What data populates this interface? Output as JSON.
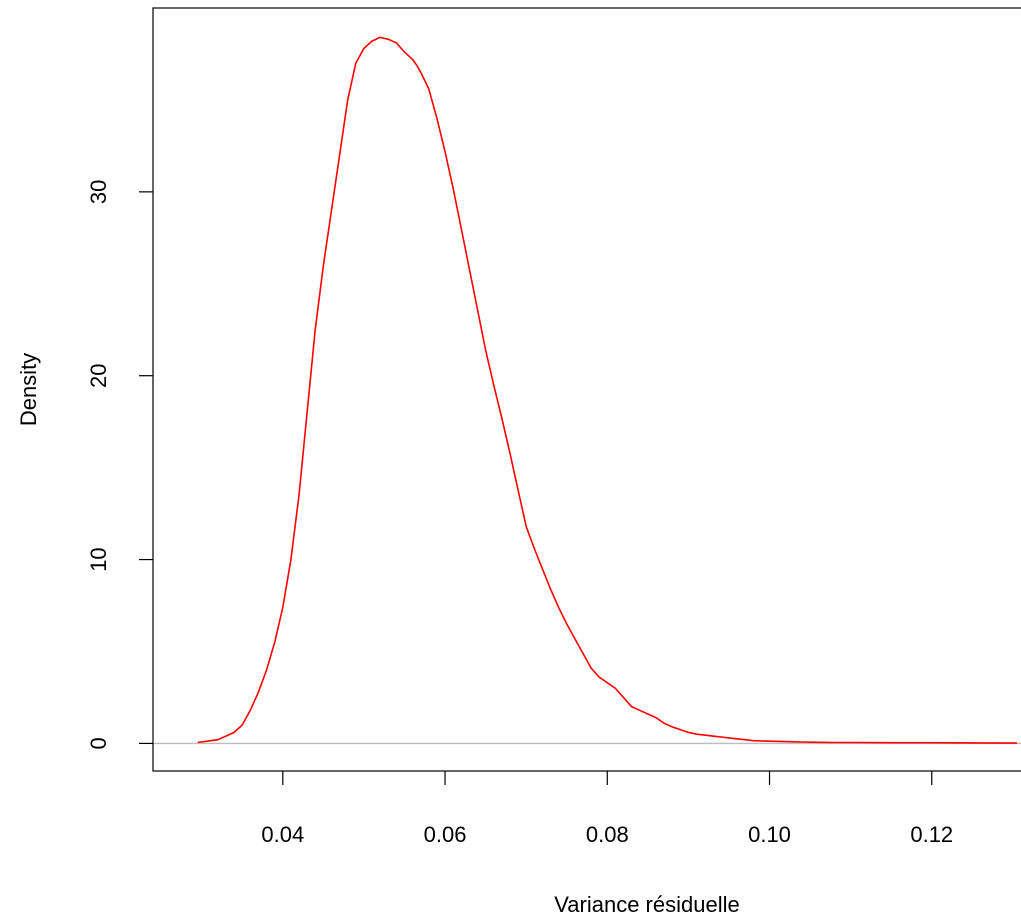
{
  "chart_data": {
    "type": "line",
    "title": "",
    "xlabel": "Variance résiduelle",
    "ylabel": "Density",
    "xlim": [
      0.024,
      0.131
    ],
    "ylim": [
      -1.5,
      40.0
    ],
    "x_ticks": [
      0.04,
      0.06,
      0.08,
      0.1,
      0.12
    ],
    "x_tick_labels": [
      "0.04",
      "0.06",
      "0.08",
      "0.10",
      "0.12"
    ],
    "y_ticks": [
      0,
      10,
      20,
      30
    ],
    "y_tick_labels": [
      "0",
      "10",
      "20",
      "30"
    ],
    "baseline": 0,
    "grid": false,
    "legend": "none",
    "colors": {
      "curve": "#ff0000",
      "baseline": "#bebebe",
      "axes": "#000000"
    },
    "series": [
      {
        "x": [
          0.0295,
          0.032,
          0.034,
          0.035,
          0.036,
          0.037,
          0.038,
          0.039,
          0.04,
          0.041,
          0.042,
          0.043,
          0.044,
          0.045,
          0.046,
          0.047,
          0.048,
          0.049,
          0.05,
          0.051,
          0.052,
          0.053,
          0.054,
          0.055,
          0.056,
          0.0565,
          0.057,
          0.058,
          0.059,
          0.06,
          0.061,
          0.062,
          0.063,
          0.064,
          0.065,
          0.066,
          0.067,
          0.068,
          0.069,
          0.07,
          0.071,
          0.072,
          0.073,
          0.074,
          0.075,
          0.076,
          0.077,
          0.078,
          0.079,
          0.08,
          0.081,
          0.082,
          0.083,
          0.084,
          0.085,
          0.086,
          0.087,
          0.088,
          0.089,
          0.09,
          0.091,
          0.092,
          0.093,
          0.094,
          0.095,
          0.096,
          0.097,
          0.098,
          0.1,
          0.102,
          0.104,
          0.106,
          0.108,
          0.11,
          0.115,
          0.12,
          0.125,
          0.1305
        ],
        "y": [
          0.05,
          0.2,
          0.6,
          1.0,
          1.8,
          2.8,
          4.0,
          5.5,
          7.4,
          10.0,
          13.5,
          18.0,
          22.5,
          26.0,
          29.0,
          32.0,
          35.0,
          37.0,
          37.8,
          38.2,
          38.4,
          38.3,
          38.1,
          37.6,
          37.2,
          36.9,
          36.5,
          35.6,
          34.0,
          32.2,
          30.2,
          28.0,
          25.8,
          23.6,
          21.4,
          19.5,
          17.7,
          15.8,
          13.8,
          11.8,
          10.6,
          9.5,
          8.4,
          7.4,
          6.5,
          5.7,
          4.9,
          4.1,
          3.6,
          3.3,
          3.0,
          2.5,
          2.0,
          1.8,
          1.6,
          1.4,
          1.1,
          0.9,
          0.75,
          0.6,
          0.5,
          0.45,
          0.4,
          0.35,
          0.3,
          0.25,
          0.2,
          0.15,
          0.12,
          0.1,
          0.08,
          0.06,
          0.05,
          0.05,
          0.04,
          0.04,
          0.03,
          0.02
        ]
      }
    ]
  }
}
